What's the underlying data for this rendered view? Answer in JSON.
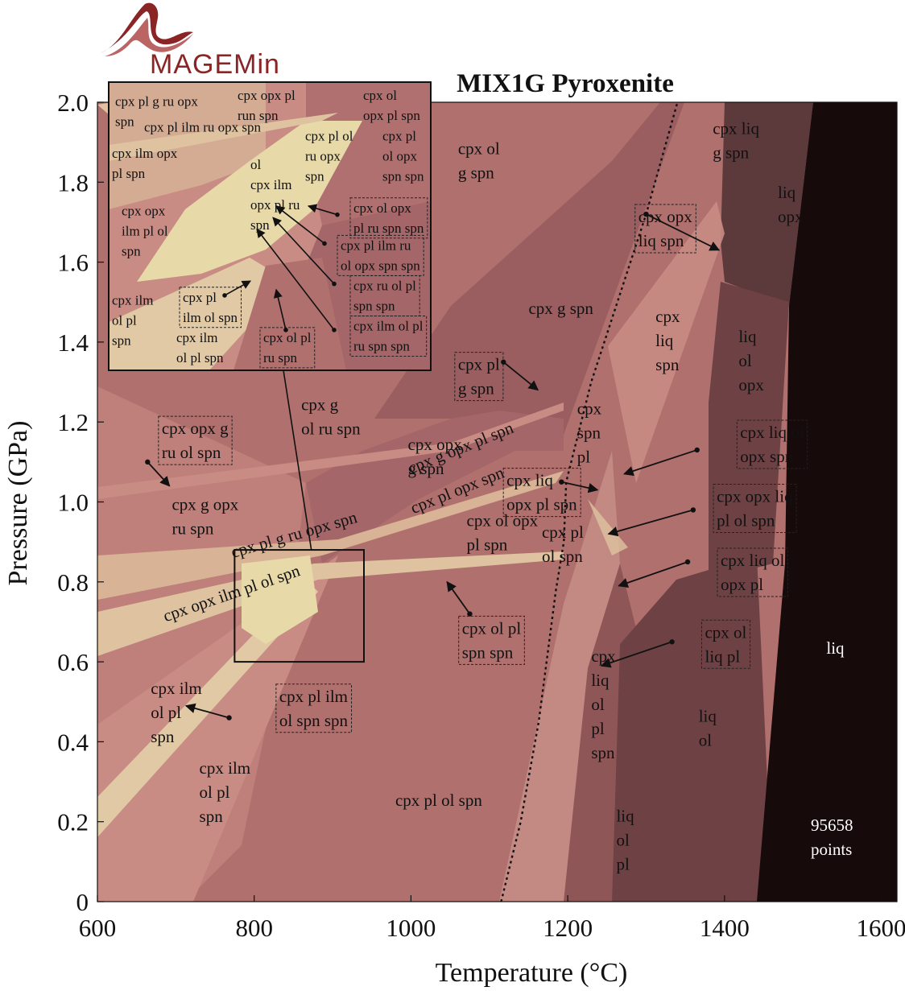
{
  "logo": {
    "text": "MAGEMin",
    "color": "#8b2424"
  },
  "chart_data": {
    "type": "heatmap",
    "title": "MIX1G Pyroxenite",
    "xlabel": "Temperature (°C)",
    "ylabel": "Pressure (GPa)",
    "xlim": [
      600,
      1620
    ],
    "ylim": [
      0,
      2.0
    ],
    "xticks": [
      "600",
      "800",
      "1000",
      "1200",
      "1400",
      "1600"
    ],
    "yticks": [
      "0",
      "0.2",
      "0.4",
      "0.6",
      "0.8",
      "1.0",
      "1.2",
      "1.4",
      "1.6",
      "1.8",
      "2.0"
    ],
    "grid": false,
    "points_label": "95658\npoints",
    "colors": {
      "base": "#b0706e",
      "light": "#c98c84",
      "pale": "#dfc3a0",
      "cream": "#e8d9a8",
      "mid": "#9a5e60",
      "dark": "#6e4244",
      "darker": "#5c3a3c",
      "black": "#170a0b"
    },
    "solidus": [
      {
        "x": 1115,
        "y": 0.0
      },
      {
        "x": 1140,
        "y": 0.2
      },
      {
        "x": 1163,
        "y": 0.45
      },
      {
        "x": 1185,
        "y": 0.78
      },
      {
        "x": 1195,
        "y": 0.9
      },
      {
        "x": 1198,
        "y": 1.05
      },
      {
        "x": 1230,
        "y": 1.3
      },
      {
        "x": 1250,
        "y": 1.42
      },
      {
        "x": 1300,
        "y": 1.72
      },
      {
        "x": 1340,
        "y": 2.0
      }
    ],
    "fields": [
      {
        "text": "cpx ol\ng spn",
        "x": 1060,
        "y": 1.87,
        "dark": false,
        "boxed": false
      },
      {
        "text": "cpx liq\ng spn",
        "x": 1385,
        "y": 1.92,
        "dark": false,
        "boxed": false
      },
      {
        "text": "liq\nopx",
        "x": 1468,
        "y": 1.76,
        "dark": false,
        "boxed": false
      },
      {
        "text": "cpx opx\nliq spn",
        "x": 1290,
        "y": 1.7,
        "dark": false,
        "boxed": true
      },
      {
        "text": "cpx g spn",
        "x": 1150,
        "y": 1.47,
        "dark": false,
        "boxed": false
      },
      {
        "text": "cpx\nliq\nspn",
        "x": 1312,
        "y": 1.45,
        "dark": false,
        "boxed": false
      },
      {
        "text": "liq\nol\nopx",
        "x": 1418,
        "y": 1.4,
        "dark": false,
        "boxed": false
      },
      {
        "text": "cpx pl\ng spn",
        "x": 1060,
        "y": 1.33,
        "dark": false,
        "boxed": true
      },
      {
        "text": "cpx\nspn\npl",
        "x": 1212,
        "y": 1.22,
        "dark": false,
        "boxed": false
      },
      {
        "text": "cpx liq ol\nopx spn",
        "x": 1420,
        "y": 1.16,
        "dark": false,
        "boxed": true
      },
      {
        "text": "cpx g\nol ru spn",
        "x": 860,
        "y": 1.23,
        "dark": false,
        "boxed": false
      },
      {
        "text": "cpx opx g\nru ol spn",
        "x": 682,
        "y": 1.17,
        "dark": false,
        "boxed": true
      },
      {
        "text": "cpx opx\ng spn",
        "x": 996,
        "y": 1.13,
        "dark": false,
        "boxed": false
      },
      {
        "text": "cpx liq\nopx pl spn",
        "x": 1122,
        "y": 1.04,
        "dark": false,
        "boxed": true
      },
      {
        "text": "cpx g opx\nru spn",
        "x": 695,
        "y": 0.98,
        "dark": false,
        "boxed": false
      },
      {
        "text": "cpx opx liq\npl ol spn",
        "x": 1390,
        "y": 1.0,
        "dark": false,
        "boxed": true
      },
      {
        "text": "cpx ol opx\npl spn",
        "x": 1071,
        "y": 0.94,
        "dark": false,
        "boxed": false
      },
      {
        "text": "cpx pl\nol spn",
        "x": 1167,
        "y": 0.91,
        "dark": false,
        "boxed": false
      },
      {
        "text": "cpx liq ol\nopx pl",
        "x": 1395,
        "y": 0.84,
        "dark": false,
        "boxed": true
      },
      {
        "text": "cpx ol pl\nspn spn",
        "x": 1065,
        "y": 0.67,
        "dark": false,
        "boxed": true
      },
      {
        "text": "cpx ol\nliq pl",
        "x": 1375,
        "y": 0.66,
        "dark": false,
        "boxed": true
      },
      {
        "text": "liq",
        "x": 1530,
        "y": 0.62,
        "dark": true,
        "boxed": false
      },
      {
        "text": "cpx\nliq\nol\npl\nspn",
        "x": 1230,
        "y": 0.6,
        "dark": false,
        "boxed": false
      },
      {
        "text": "cpx ilm\nol pl\nspn",
        "x": 668,
        "y": 0.52,
        "dark": false,
        "boxed": false
      },
      {
        "text": "cpx pl ilm\nol spn spn",
        "x": 832,
        "y": 0.5,
        "dark": false,
        "boxed": true
      },
      {
        "text": "liq\nol",
        "x": 1367,
        "y": 0.45,
        "dark": false,
        "boxed": false
      },
      {
        "text": "cpx ilm\nol pl\nspn",
        "x": 730,
        "y": 0.32,
        "dark": false,
        "boxed": false
      },
      {
        "text": "cpx pl ol spn",
        "x": 980,
        "y": 0.24,
        "dark": false,
        "boxed": false
      },
      {
        "text": "liq\nol\npl",
        "x": 1262,
        "y": 0.2,
        "dark": false,
        "boxed": false
      }
    ],
    "rotated_fields": [
      {
        "text": "cpx g opx pl spn",
        "x": 1000,
        "y": 1.07,
        "angle": -22,
        "size": 21
      },
      {
        "text": "cpx pl opx spn",
        "x": 1003,
        "y": 0.97,
        "angle": -22,
        "size": 21
      },
      {
        "text": "cpx pl g ru opx spn",
        "x": 773,
        "y": 0.86,
        "angle": -16,
        "size": 21
      },
      {
        "text": "cpx opx ilm pl ol spn",
        "x": 687,
        "y": 0.7,
        "angle": -19,
        "size": 15
      }
    ],
    "arrows": [
      {
        "from": [
          1300,
          1.72
        ],
        "to": [
          1393,
          1.63
        ]
      },
      {
        "from": [
          1118,
          1.35
        ],
        "to": [
          1162,
          1.28
        ]
      },
      {
        "from": [
          1365,
          1.13
        ],
        "to": [
          1272,
          1.07
        ]
      },
      {
        "from": [
          1192,
          1.05
        ],
        "to": [
          1238,
          1.03
        ]
      },
      {
        "from": [
          1360,
          0.98
        ],
        "to": [
          1252,
          0.92
        ]
      },
      {
        "from": [
          1353,
          0.85
        ],
        "to": [
          1265,
          0.79
        ]
      },
      {
        "from": [
          1075,
          0.72
        ],
        "to": [
          1046,
          0.8
        ]
      },
      {
        "from": [
          1333,
          0.65
        ],
        "to": [
          1243,
          0.59
        ]
      },
      {
        "from": [
          768,
          0.46
        ],
        "to": [
          713,
          0.49
        ]
      },
      {
        "from": [
          664,
          1.1
        ],
        "to": [
          692,
          1.04
        ]
      }
    ],
    "inset": {
      "main_box": {
        "x0": 775,
        "x1": 940,
        "y0": 0.6,
        "y1": 0.88
      },
      "labels": [
        {
          "text": "cpx pl g ru opx\nspn",
          "fx": 0.02,
          "fy": 0.04,
          "boxed": false
        },
        {
          "text": "cpx opx pl\nrun spn",
          "fx": 0.4,
          "fy": 0.02,
          "boxed": false
        },
        {
          "text": "cpx ol\nopx pl spn",
          "fx": 0.79,
          "fy": 0.02,
          "boxed": false
        },
        {
          "text": "cpx pl ilm ru opx spn",
          "fx": 0.11,
          "fy": 0.13,
          "boxed": false
        },
        {
          "text": "cpx pl ol\nru opx\nspn",
          "fx": 0.61,
          "fy": 0.16,
          "boxed": false
        },
        {
          "text": "cpx pl\nol opx\nspn spn",
          "fx": 0.85,
          "fy": 0.16,
          "boxed": false
        },
        {
          "text": "cpx ilm opx\npl spn",
          "fx": 0.01,
          "fy": 0.22,
          "boxed": false
        },
        {
          "text": "ol\ncpx ilm\nopx pl ru\nspn",
          "fx": 0.44,
          "fy": 0.26,
          "boxed": false
        },
        {
          "text": "cpx ol opx\npl ru spn spn",
          "fx": 0.76,
          "fy": 0.41,
          "boxed": true
        },
        {
          "text": "cpx opx\nilm pl ol\nspn",
          "fx": 0.04,
          "fy": 0.42,
          "boxed": false
        },
        {
          "text": "cpx pl ilm ru\nol opx spn spn",
          "fx": 0.72,
          "fy": 0.54,
          "boxed": true
        },
        {
          "text": "cpx ru ol pl\nspn spn",
          "fx": 0.76,
          "fy": 0.68,
          "boxed": true
        },
        {
          "text": "cpx ilm\nol pl\nspn",
          "fx": 0.01,
          "fy": 0.73,
          "boxed": false
        },
        {
          "text": "cpx pl\nilm ol spn",
          "fx": 0.23,
          "fy": 0.72,
          "boxed": true
        },
        {
          "text": "cpx ilm ol pl\nru spn spn",
          "fx": 0.76,
          "fy": 0.82,
          "boxed": true
        },
        {
          "text": "cpx ilm\nol pl spn",
          "fx": 0.21,
          "fy": 0.86,
          "boxed": false
        },
        {
          "text": "cpx ol pl\nru spn",
          "fx": 0.48,
          "fy": 0.86,
          "boxed": true
        }
      ],
      "arrows": [
        {
          "from": [
            0.71,
            0.46
          ],
          "to": [
            0.62,
            0.43
          ]
        },
        {
          "from": [
            0.67,
            0.56
          ],
          "to": [
            0.52,
            0.43
          ]
        },
        {
          "from": [
            0.7,
            0.7
          ],
          "to": [
            0.51,
            0.47
          ]
        },
        {
          "from": [
            0.7,
            0.86
          ],
          "to": [
            0.46,
            0.51
          ]
        },
        {
          "from": [
            0.55,
            0.86
          ],
          "to": [
            0.52,
            0.72
          ]
        },
        {
          "from": [
            0.36,
            0.74
          ],
          "to": [
            0.44,
            0.69
          ]
        }
      ]
    }
  }
}
